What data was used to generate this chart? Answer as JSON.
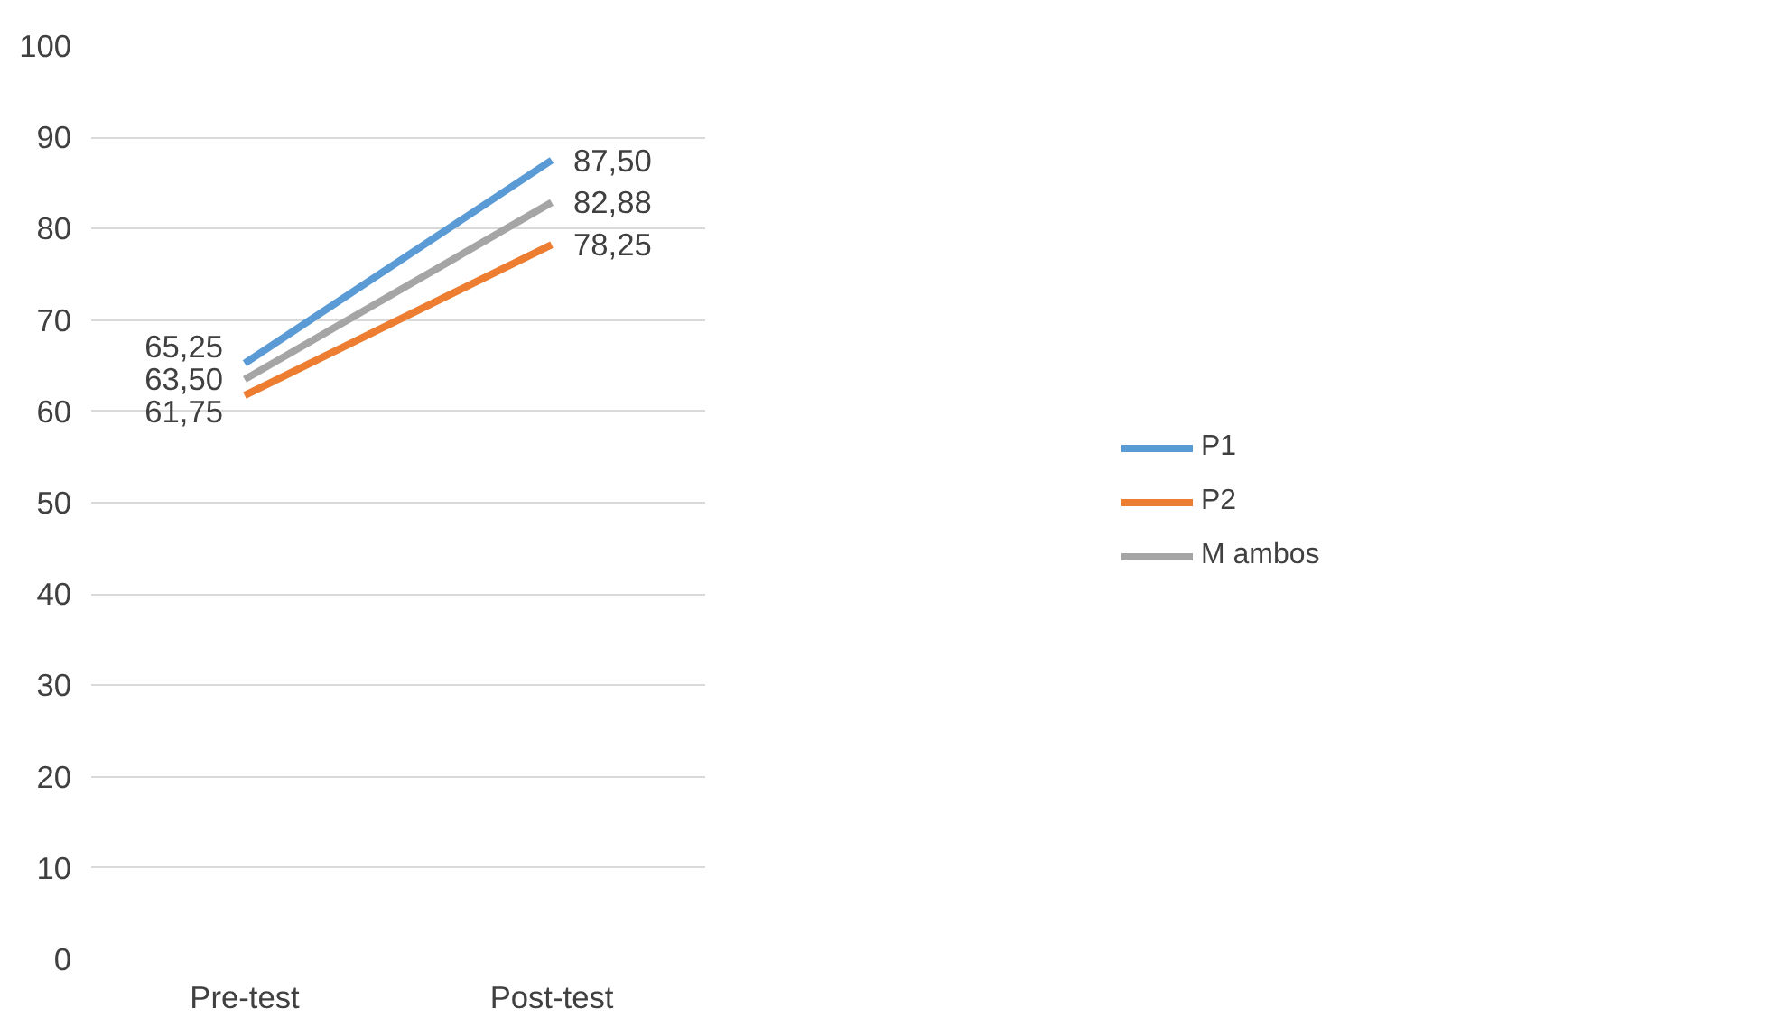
{
  "chart_data": {
    "type": "line",
    "categories": [
      "Pre-test",
      "Post-test"
    ],
    "series": [
      {
        "name": "P1",
        "color": "#5b9bd5",
        "values": [
          65.25,
          87.5
        ],
        "value_labels": [
          "65,25",
          "87,50"
        ]
      },
      {
        "name": "P2",
        "color": "#ed7d31",
        "values": [
          61.75,
          78.25
        ],
        "value_labels": [
          "61,75",
          "78,25"
        ]
      },
      {
        "name": "M ambos",
        "color": "#a5a5a5",
        "values": [
          63.5,
          82.88
        ],
        "value_labels": [
          "63,50",
          "82,88"
        ]
      }
    ],
    "ylim": [
      0,
      100
    ],
    "yticks": [
      0,
      10,
      20,
      30,
      40,
      50,
      60,
      70,
      80,
      90,
      100
    ],
    "grid": "y",
    "legend": "right",
    "marker": "none",
    "line_style": "solid"
  }
}
